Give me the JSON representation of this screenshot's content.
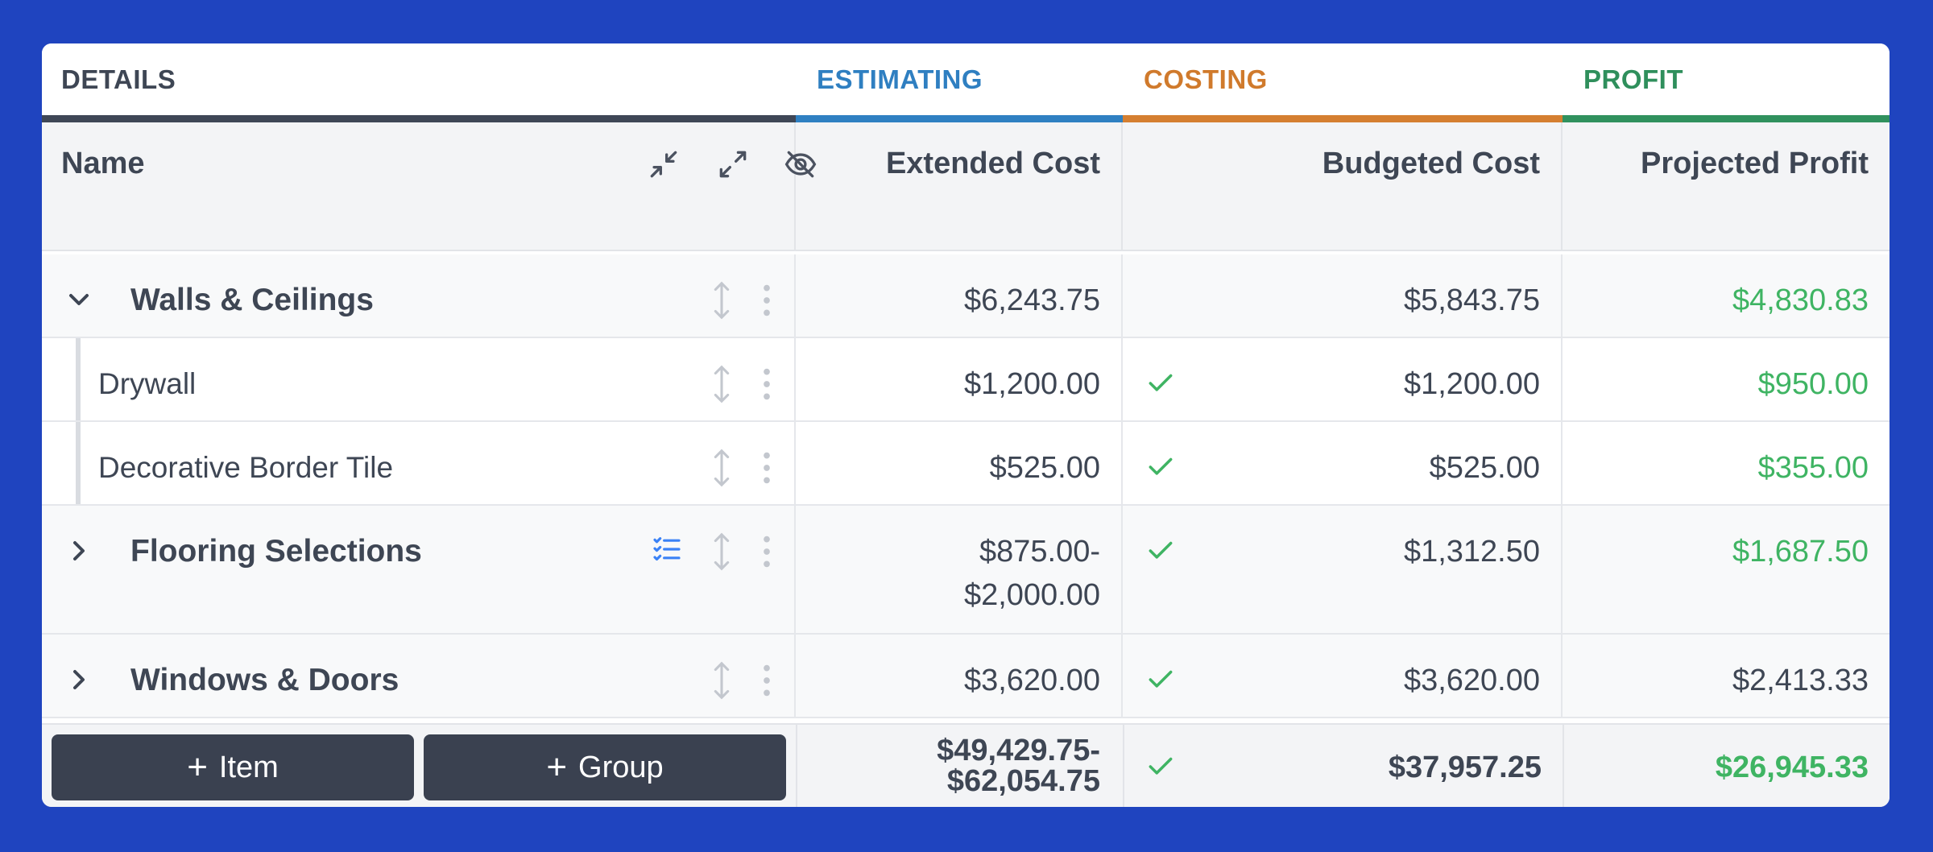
{
  "sections": {
    "details": "DETAILS",
    "estimating": "ESTIMATING",
    "costing": "COSTING",
    "profit": "PROFIT"
  },
  "columns": {
    "name": "Name",
    "extended_cost": "Extended Cost",
    "budgeted_cost": "Budgeted Cost",
    "projected_profit": "Projected Profit"
  },
  "header_icons": [
    "collapse-all-icon",
    "expand-all-icon",
    "hide-icon"
  ],
  "rows": [
    {
      "type": "group",
      "name": "Walls & Ceilings",
      "expanded": true,
      "extended_cost": "$6,243.75",
      "budgeted_cost": "$5,843.75",
      "projected_profit": "$4,830.83",
      "checked": false
    },
    {
      "type": "item",
      "name": "Drywall",
      "extended_cost": "$1,200.00",
      "budgeted_cost": "$1,200.00",
      "projected_profit": "$950.00",
      "checked": true
    },
    {
      "type": "item",
      "name": "Decorative Border Tile",
      "extended_cost": "$525.00",
      "budgeted_cost": "$525.00",
      "projected_profit": "$355.00",
      "checked": true
    },
    {
      "type": "group",
      "name": "Flooring Selections",
      "expanded": false,
      "extended_cost_line1": "$875.00-",
      "extended_cost_line2": "$2,000.00",
      "budgeted_cost": "$1,312.50",
      "projected_profit": "$1,687.50",
      "checked": true
    },
    {
      "type": "group",
      "name": "Windows & Doors",
      "expanded": false,
      "extended_cost": "$3,620.00",
      "budgeted_cost": "$3,620.00",
      "projected_profit": "$2,413.33",
      "checked": true
    }
  ],
  "footer": {
    "add_item": "Item",
    "add_group": "Group",
    "total_extended_line1": "$49,429.75-",
    "total_extended_line2": "$62,054.75",
    "total_budgeted": "$37,957.25",
    "total_profit": "$26,945.33"
  },
  "colors": {
    "background": "#1f44bf",
    "estimating": "#2f80c2",
    "costing": "#d57f31",
    "profit": "#30915e",
    "profit_value": "#3fb463",
    "button": "#3a4150"
  }
}
